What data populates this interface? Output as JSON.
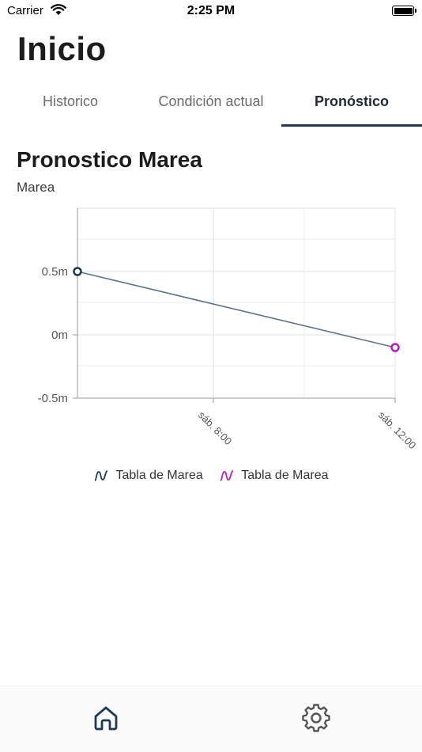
{
  "status_bar": {
    "carrier": "Carrier",
    "time": "2:25 PM"
  },
  "header": {
    "title": "Inicio"
  },
  "tabs": [
    {
      "label": "Historico",
      "active": false
    },
    {
      "label": "Condición actual",
      "active": false
    },
    {
      "label": "Pronóstico",
      "active": true
    }
  ],
  "section": {
    "title": "Pronostico Marea",
    "subtitle": "Marea"
  },
  "chart_data": {
    "type": "line",
    "title": "",
    "xlabel": "",
    "ylabel": "",
    "y_ticks": [
      "0.5m",
      "0m",
      "-0.5m"
    ],
    "x_ticks": [
      "sáb. 8:00",
      "sáb. 12:00"
    ],
    "ylim": [
      -0.5,
      1.0
    ],
    "grid": true,
    "legend_position": "bottom",
    "series": [
      {
        "name": "Tabla de Marea",
        "color": "#1e3a57",
        "points": [
          {
            "x": "sáb. 5:00",
            "y": 0.5
          }
        ]
      },
      {
        "name": "Tabla de Marea",
        "color": "#b81fc1",
        "points": [
          {
            "x": "sáb. 12:00",
            "y": -0.1
          }
        ]
      }
    ],
    "line_color": "#5c7489"
  },
  "bottom_nav": [
    {
      "icon": "home-icon",
      "active": true,
      "color": "#1e3a57"
    },
    {
      "icon": "gear-icon",
      "active": false,
      "color": "#555555"
    }
  ]
}
